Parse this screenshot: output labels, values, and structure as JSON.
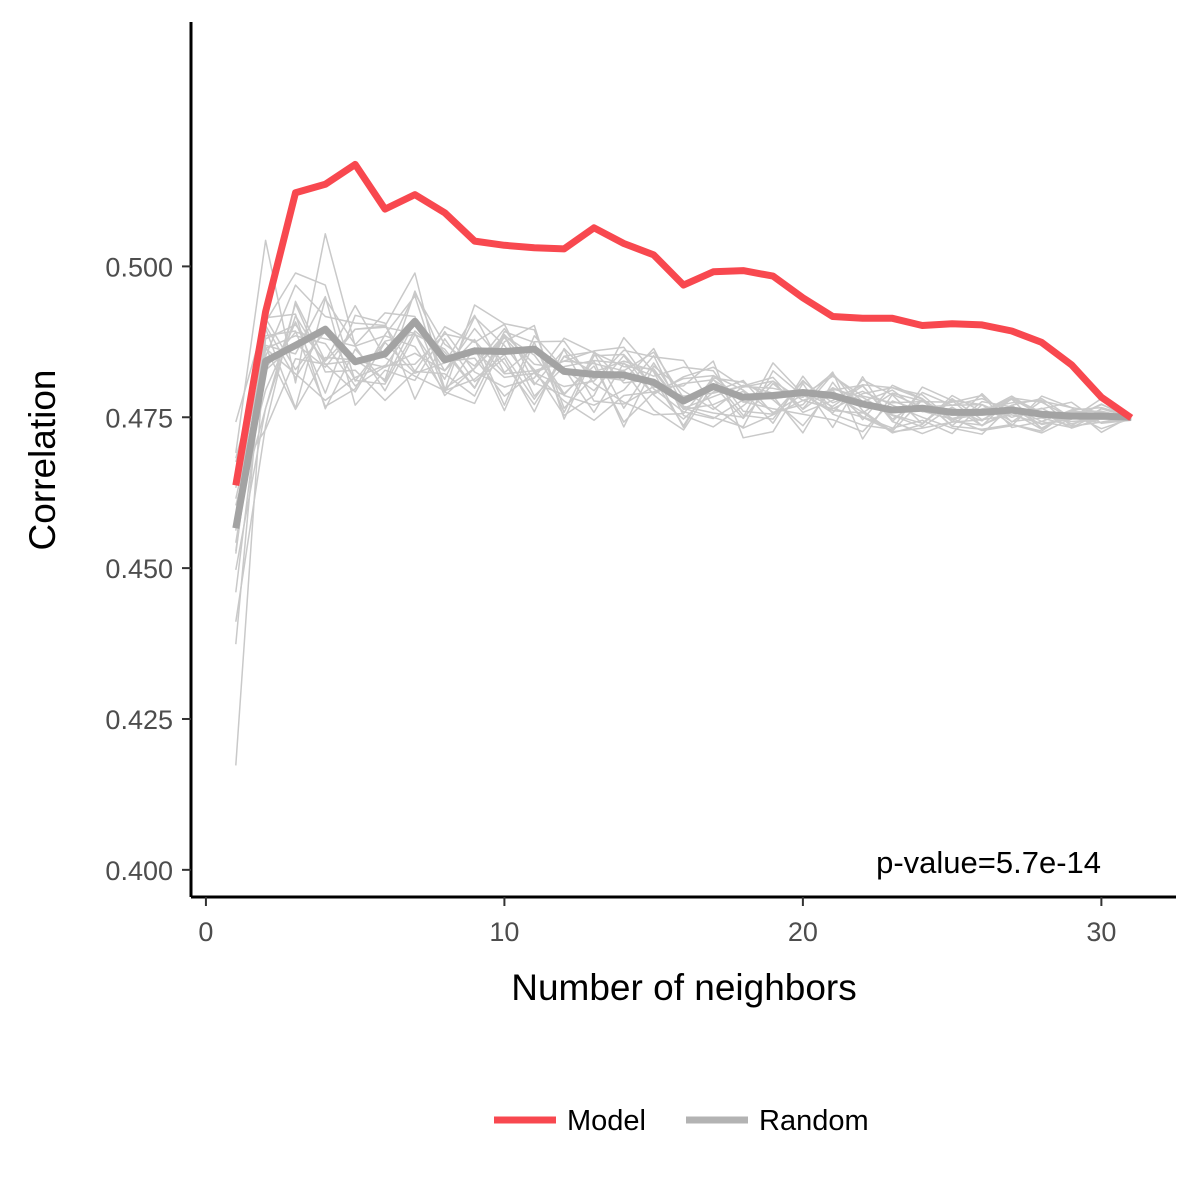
{
  "chart_data": {
    "type": "line",
    "xlabel": "Number of neighbors",
    "ylabel": "Correlation",
    "xlim": [
      -0.5,
      32.5
    ],
    "ylim": [
      0.3955,
      0.5405
    ],
    "xticks": [
      0,
      10,
      20,
      30
    ],
    "yticks": [
      0.4,
      0.425,
      0.45,
      0.475,
      0.5
    ],
    "ytick_labels": [
      "0.400",
      "0.425",
      "0.450",
      "0.475",
      "0.500"
    ],
    "grid": false,
    "legend_position": "bottom",
    "annotation": "p-value=5.7e-14",
    "colors": {
      "model": "#f8484f",
      "random_mean": "#a3a3a3",
      "random_runs": "#c9c9c9"
    },
    "series": [
      {
        "name": "Model",
        "x": [
          1,
          2,
          3,
          4,
          5,
          6,
          7,
          8,
          9,
          10,
          11,
          12,
          13,
          14,
          15,
          16,
          17,
          18,
          19,
          20,
          21,
          22,
          23,
          24,
          25,
          26,
          27,
          28,
          29,
          30,
          31
        ],
        "values": [
          0.4637,
          0.4925,
          0.5122,
          0.5136,
          0.5169,
          0.5095,
          0.5119,
          0.5089,
          0.5042,
          0.5035,
          0.5031,
          0.5029,
          0.5064,
          0.5038,
          0.5019,
          0.4969,
          0.4991,
          0.4993,
          0.4984,
          0.4948,
          0.4917,
          0.4914,
          0.4914,
          0.4902,
          0.4905,
          0.4903,
          0.4893,
          0.4874,
          0.4837,
          0.4783,
          0.4749
        ]
      },
      {
        "name": "Random",
        "x": [
          1,
          2,
          3,
          4,
          5,
          6,
          7,
          8,
          9,
          10,
          11,
          12,
          13,
          14,
          15,
          16,
          17,
          18,
          19,
          20,
          21,
          22,
          23,
          24,
          25,
          26,
          27,
          28,
          29,
          30,
          31
        ],
        "values": [
          0.4566,
          0.4843,
          0.4869,
          0.4896,
          0.4842,
          0.4855,
          0.4909,
          0.4845,
          0.486,
          0.4859,
          0.4863,
          0.4826,
          0.4821,
          0.482,
          0.4808,
          0.4777,
          0.4801,
          0.4783,
          0.4786,
          0.4791,
          0.4786,
          0.4772,
          0.4762,
          0.4765,
          0.4758,
          0.4758,
          0.4762,
          0.4755,
          0.4752,
          0.4752,
          0.475
        ]
      }
    ],
    "random_runs": [
      [
        0.4562,
        0.4897,
        0.4765,
        0.4946,
        0.487,
        0.4923,
        0.4917,
        0.4794,
        0.4936,
        0.4905,
        0.4895,
        0.4765,
        0.4818,
        0.4811,
        0.4864,
        0.4768,
        0.4757,
        0.475,
        0.484,
        0.4788,
        0.4788,
        0.4758,
        0.4724,
        0.4738,
        0.4786,
        0.4759,
        0.4782,
        0.4775,
        0.4749,
        0.4772,
        0.4748
      ],
      [
        0.4411,
        0.4736,
        0.4942,
        0.4843,
        0.4896,
        0.4901,
        0.4989,
        0.4792,
        0.4773,
        0.4875,
        0.4902,
        0.4747,
        0.4852,
        0.4854,
        0.48,
        0.4802,
        0.4843,
        0.4716,
        0.4726,
        0.4806,
        0.4733,
        0.4817,
        0.4743,
        0.4723,
        0.4742,
        0.4789,
        0.4742,
        0.4777,
        0.4766,
        0.4725,
        0.4752
      ],
      [
        0.4524,
        0.4902,
        0.4815,
        0.4899,
        0.4811,
        0.4805,
        0.4893,
        0.4852,
        0.486,
        0.4816,
        0.4823,
        0.4777,
        0.4745,
        0.4786,
        0.4792,
        0.4814,
        0.4819,
        0.4795,
        0.4758,
        0.4771,
        0.4825,
        0.4714,
        0.4788,
        0.4767,
        0.477,
        0.4771,
        0.4738,
        0.4724,
        0.4748,
        0.4781,
        0.4745
      ],
      [
        0.4682,
        0.4866,
        0.4763,
        0.4849,
        0.4845,
        0.4812,
        0.4959,
        0.4842,
        0.4848,
        0.4785,
        0.4824,
        0.4843,
        0.486,
        0.4866,
        0.4797,
        0.4759,
        0.4748,
        0.4779,
        0.4781,
        0.4791,
        0.4768,
        0.4802,
        0.4747,
        0.4778,
        0.4736,
        0.4776,
        0.4767,
        0.4743,
        0.4733,
        0.4757,
        0.4751
      ],
      [
        0.4374,
        0.4908,
        0.4989,
        0.4969,
        0.481,
        0.4876,
        0.4888,
        0.4813,
        0.4916,
        0.4869,
        0.4804,
        0.4862,
        0.4777,
        0.4772,
        0.4801,
        0.4785,
        0.479,
        0.4802,
        0.4816,
        0.4763,
        0.4799,
        0.4776,
        0.4795,
        0.4759,
        0.4764,
        0.4744,
        0.4781,
        0.4753,
        0.4743,
        0.4747,
        0.4752
      ],
      [
        0.4173,
        0.4885,
        0.4893,
        0.4768,
        0.4797,
        0.4887,
        0.4951,
        0.4798,
        0.4831,
        0.4882,
        0.4829,
        0.4753,
        0.4786,
        0.4882,
        0.4825,
        0.4733,
        0.4819,
        0.4775,
        0.4785,
        0.4724,
        0.4808,
        0.4746,
        0.4803,
        0.4781,
        0.4743,
        0.4737,
        0.4758,
        0.473,
        0.4761,
        0.4747,
        0.4749
      ],
      [
        0.4542,
        0.4851,
        0.4969,
        0.4917,
        0.4906,
        0.4902,
        0.4826,
        0.49,
        0.4874,
        0.4904,
        0.4807,
        0.4787,
        0.4843,
        0.4734,
        0.4835,
        0.4794,
        0.4763,
        0.4801,
        0.4798,
        0.4787,
        0.4818,
        0.4785,
        0.4774,
        0.4776,
        0.4775,
        0.4786,
        0.4733,
        0.4743,
        0.4762,
        0.4749,
        0.4749
      ],
      [
        0.4583,
        0.4765,
        0.4938,
        0.4825,
        0.4828,
        0.4778,
        0.4826,
        0.4822,
        0.4785,
        0.4885,
        0.4853,
        0.4786,
        0.477,
        0.4795,
        0.4852,
        0.4753,
        0.4734,
        0.4769,
        0.481,
        0.4758,
        0.4778,
        0.4804,
        0.4799,
        0.478,
        0.4748,
        0.4728,
        0.4736,
        0.4785,
        0.4766,
        0.4758,
        0.4751
      ],
      [
        0.4497,
        0.4765,
        0.4918,
        0.4838,
        0.4844,
        0.4853,
        0.4955,
        0.4871,
        0.4835,
        0.4897,
        0.4824,
        0.4801,
        0.481,
        0.4861,
        0.485,
        0.4844,
        0.4767,
        0.4732,
        0.4754,
        0.4778,
        0.4794,
        0.4751,
        0.4732,
        0.4745,
        0.4723,
        0.4771,
        0.475,
        0.4765,
        0.4739,
        0.4752,
        0.4748
      ],
      [
        0.4604,
        0.4795,
        0.4908,
        0.479,
        0.4919,
        0.4906,
        0.478,
        0.488,
        0.4809,
        0.4848,
        0.4759,
        0.4864,
        0.4814,
        0.4828,
        0.4762,
        0.4729,
        0.4804,
        0.4748,
        0.4806,
        0.4764,
        0.4821,
        0.4776,
        0.4753,
        0.4734,
        0.4767,
        0.4736,
        0.4764,
        0.4738,
        0.4747,
        0.4771,
        0.4751
      ],
      [
        0.4577,
        0.4869,
        0.4855,
        0.495,
        0.477,
        0.4828,
        0.4811,
        0.4892,
        0.4825,
        0.48,
        0.4815,
        0.4881,
        0.4857,
        0.4765,
        0.484,
        0.4765,
        0.475,
        0.4734,
        0.4827,
        0.4785,
        0.4795,
        0.4803,
        0.4743,
        0.4791,
        0.477,
        0.4781,
        0.4758,
        0.4764,
        0.4775,
        0.474,
        0.4745
      ],
      [
        0.4528,
        0.488,
        0.4903,
        0.4843,
        0.4935,
        0.4849,
        0.4818,
        0.4794,
        0.4813,
        0.4854,
        0.478,
        0.4851,
        0.4825,
        0.4843,
        0.4827,
        0.4763,
        0.4771,
        0.4793,
        0.474,
        0.4818,
        0.4755,
        0.4737,
        0.473,
        0.48,
        0.4778,
        0.4736,
        0.4782,
        0.4758,
        0.4732,
        0.4748,
        0.4752
      ],
      [
        0.4742,
        0.4915,
        0.4921,
        0.4764,
        0.4863,
        0.4809,
        0.4909,
        0.4827,
        0.4879,
        0.477,
        0.4885,
        0.483,
        0.4794,
        0.4852,
        0.4787,
        0.4747,
        0.4792,
        0.4811,
        0.4756,
        0.4788,
        0.4757,
        0.4812,
        0.4787,
        0.4739,
        0.4778,
        0.4771,
        0.4743,
        0.4749,
        0.4736,
        0.4764,
        0.475
      ],
      [
        0.4615,
        0.4832,
        0.4891,
        0.488,
        0.4868,
        0.4885,
        0.4867,
        0.4792,
        0.4865,
        0.4761,
        0.4875,
        0.4876,
        0.4806,
        0.4775,
        0.4754,
        0.4756,
        0.4815,
        0.4808,
        0.4779,
        0.4736,
        0.4797,
        0.4783,
        0.4754,
        0.474,
        0.4781,
        0.4746,
        0.477,
        0.4781,
        0.4749,
        0.4741,
        0.4748
      ],
      [
        0.4586,
        0.4914,
        0.4829,
        0.4893,
        0.4844,
        0.4833,
        0.4856,
        0.4827,
        0.4897,
        0.4839,
        0.4771,
        0.4851,
        0.4859,
        0.4807,
        0.4813,
        0.4736,
        0.4813,
        0.4753,
        0.4747,
        0.4811,
        0.4765,
        0.475,
        0.4727,
        0.4779,
        0.4735,
        0.473,
        0.4738,
        0.4727,
        0.4762,
        0.4766,
        0.4752
      ],
      [
        0.4676,
        0.4828,
        0.4872,
        0.4833,
        0.4896,
        0.4899,
        0.4889,
        0.4786,
        0.4831,
        0.4887,
        0.4838,
        0.4831,
        0.4758,
        0.484,
        0.4788,
        0.4817,
        0.4833,
        0.48,
        0.481,
        0.4778,
        0.4764,
        0.4789,
        0.4799,
        0.4787,
        0.4746,
        0.4764,
        0.4774,
        0.4778,
        0.4735,
        0.4742,
        0.4751
      ],
      [
        0.446,
        0.4864,
        0.4822,
        0.4778,
        0.4816,
        0.4836,
        0.4838,
        0.4888,
        0.4877,
        0.4822,
        0.4827,
        0.4843,
        0.4839,
        0.4827,
        0.4858,
        0.4782,
        0.4805,
        0.4776,
        0.4764,
        0.4755,
        0.4746,
        0.4726,
        0.4777,
        0.476,
        0.4747,
        0.4755,
        0.478,
        0.4731,
        0.4759,
        0.476,
        0.4749
      ],
      [
        0.4652,
        0.473,
        0.4847,
        0.4838,
        0.4792,
        0.4874,
        0.4823,
        0.484,
        0.4919,
        0.4824,
        0.4866,
        0.4789,
        0.4835,
        0.4742,
        0.4791,
        0.4806,
        0.4812,
        0.4781,
        0.4781,
        0.4787,
        0.4761,
        0.4757,
        0.479,
        0.4777,
        0.4748,
        0.4759,
        0.4785,
        0.4754,
        0.4755,
        0.4731,
        0.4748
      ],
      [
        0.4691,
        0.5043,
        0.4807,
        0.5054,
        0.4868,
        0.4794,
        0.4887,
        0.4863,
        0.4799,
        0.4892,
        0.4874,
        0.4758,
        0.4857,
        0.4834,
        0.483,
        0.4765,
        0.4784,
        0.4803,
        0.479,
        0.4783,
        0.4823,
        0.4761,
        0.4726,
        0.4732,
        0.4742,
        0.4746,
        0.4754,
        0.4739,
        0.4749,
        0.4751,
        0.4752
      ],
      [
        0.4633,
        0.4864,
        0.4885,
        0.4872,
        0.4802,
        0.4834,
        0.4907,
        0.4858,
        0.4798,
        0.4886,
        0.4785,
        0.4834,
        0.4844,
        0.4839,
        0.4818,
        0.4833,
        0.4827,
        0.476,
        0.4755,
        0.4809,
        0.4774,
        0.4793,
        0.477,
        0.475,
        0.4732,
        0.4722,
        0.477,
        0.4732,
        0.4757,
        0.4757,
        0.475
      ]
    ]
  },
  "legend": {
    "items": [
      {
        "label": "Model"
      },
      {
        "label": "Random"
      }
    ]
  }
}
